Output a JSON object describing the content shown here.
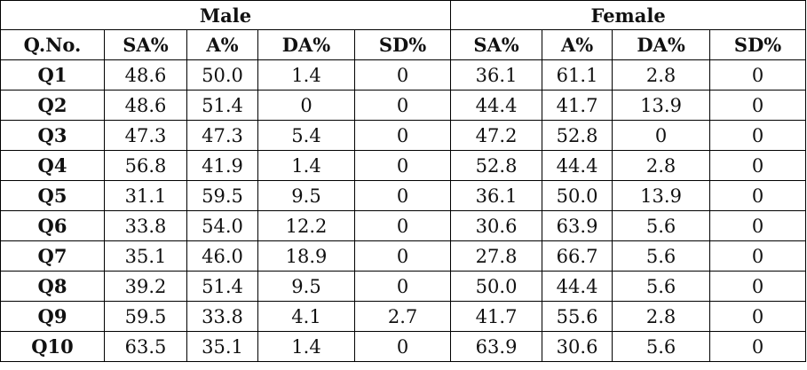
{
  "groups": {
    "male": "Male",
    "female": "Female"
  },
  "headers": [
    "Q.No.",
    "SA%",
    "A%",
    "DA%",
    "SD%",
    "SA%",
    "A%",
    "DA%",
    "SD%"
  ],
  "rows": [
    [
      "Q1",
      "48.6",
      "50.0",
      "1.4",
      "0",
      "36.1",
      "61.1",
      "2.8",
      "0"
    ],
    [
      "Q2",
      "48.6",
      "51.4",
      "0",
      "0",
      "44.4",
      "41.7",
      "13.9",
      "0"
    ],
    [
      "Q3",
      "47.3",
      "47.3",
      "5.4",
      "0",
      "47.2",
      "52.8",
      "0",
      "0"
    ],
    [
      "Q4",
      "56.8",
      "41.9",
      "1.4",
      "0",
      "52.8",
      "44.4",
      "2.8",
      "0"
    ],
    [
      "Q5",
      "31.1",
      "59.5",
      "9.5",
      "0",
      "36.1",
      "50.0",
      "13.9",
      "0"
    ],
    [
      "Q6",
      "33.8",
      "54.0",
      "12.2",
      "0",
      "30.6",
      "63.9",
      "5.6",
      "0"
    ],
    [
      "Q7",
      "35.1",
      "46.0",
      "18.9",
      "0",
      "27.8",
      "66.7",
      "5.6",
      "0"
    ],
    [
      "Q8",
      "39.2",
      "51.4",
      "9.5",
      "0",
      "50.0",
      "44.4",
      "5.6",
      "0"
    ],
    [
      "Q9",
      "59.5",
      "33.8",
      "4.1",
      "2.7",
      "41.7",
      "55.6",
      "2.8",
      "0"
    ],
    [
      "Q10",
      "63.5",
      "35.1",
      "1.4",
      "0",
      "63.9",
      "30.6",
      "5.6",
      "0"
    ]
  ]
}
